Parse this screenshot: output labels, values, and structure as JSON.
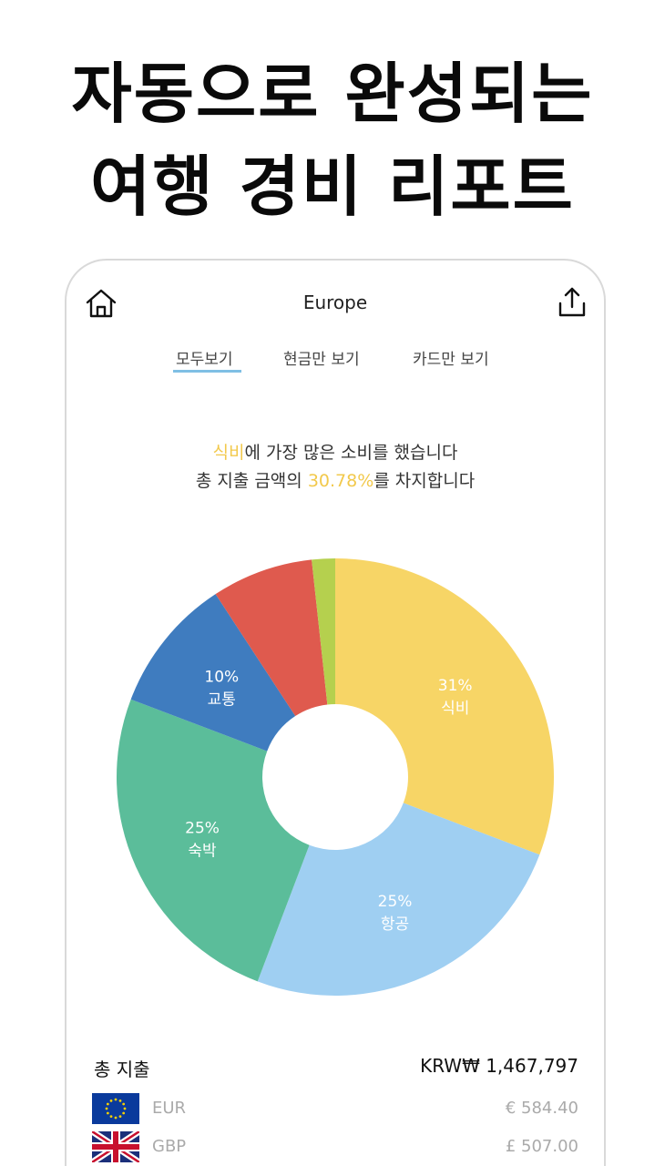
{
  "headline": {
    "line1": "자동으로 완성되는",
    "line2": "여행 경비 리포트"
  },
  "app": {
    "title": "Europe",
    "icons": {
      "home": "home-icon",
      "share": "share-icon"
    },
    "tabs": [
      {
        "label": "모두보기",
        "selected": true
      },
      {
        "label": "현금만 보기",
        "selected": false
      },
      {
        "label": "카드만 보기",
        "selected": false
      }
    ],
    "summary": {
      "line1_highlight": "식비",
      "line1_rest": "에 가장 많은 소비를 했습니다",
      "line2_prefix": "총 지출 금액의 ",
      "line2_highlight": "30.78%",
      "line2_suffix": "를 차지합니다"
    }
  },
  "chart_data": {
    "type": "pie",
    "slices": [
      {
        "name": "식비",
        "value": 30.78,
        "percent_label": "31%",
        "color": "#f7d566"
      },
      {
        "name": "항공",
        "value": 25,
        "percent_label": "25%",
        "color": "#9fcff2"
      },
      {
        "name": "숙박",
        "value": 25,
        "percent_label": "25%",
        "color": "#5bbd9a"
      },
      {
        "name": "교통",
        "value": 10,
        "percent_label": "10%",
        "color": "#3f7cbf"
      },
      {
        "name": "",
        "value": 7.5,
        "percent_label": "",
        "color": "#df5a4e"
      },
      {
        "name": "",
        "value": 1.72,
        "percent_label": "",
        "color": "#b5d04e"
      }
    ]
  },
  "totals": {
    "label": "총 지출",
    "value": "KRW₩ 1,467,797"
  },
  "currencies": [
    {
      "code": "EUR",
      "amount": "€ 584.40",
      "flag": "eu-flag-icon"
    },
    {
      "code": "GBP",
      "amount": "£ 507.00",
      "flag": "uk-flag-icon"
    }
  ],
  "colors": {
    "highlight": "#f2c94c",
    "tab_underline": "#7fbfe4"
  }
}
